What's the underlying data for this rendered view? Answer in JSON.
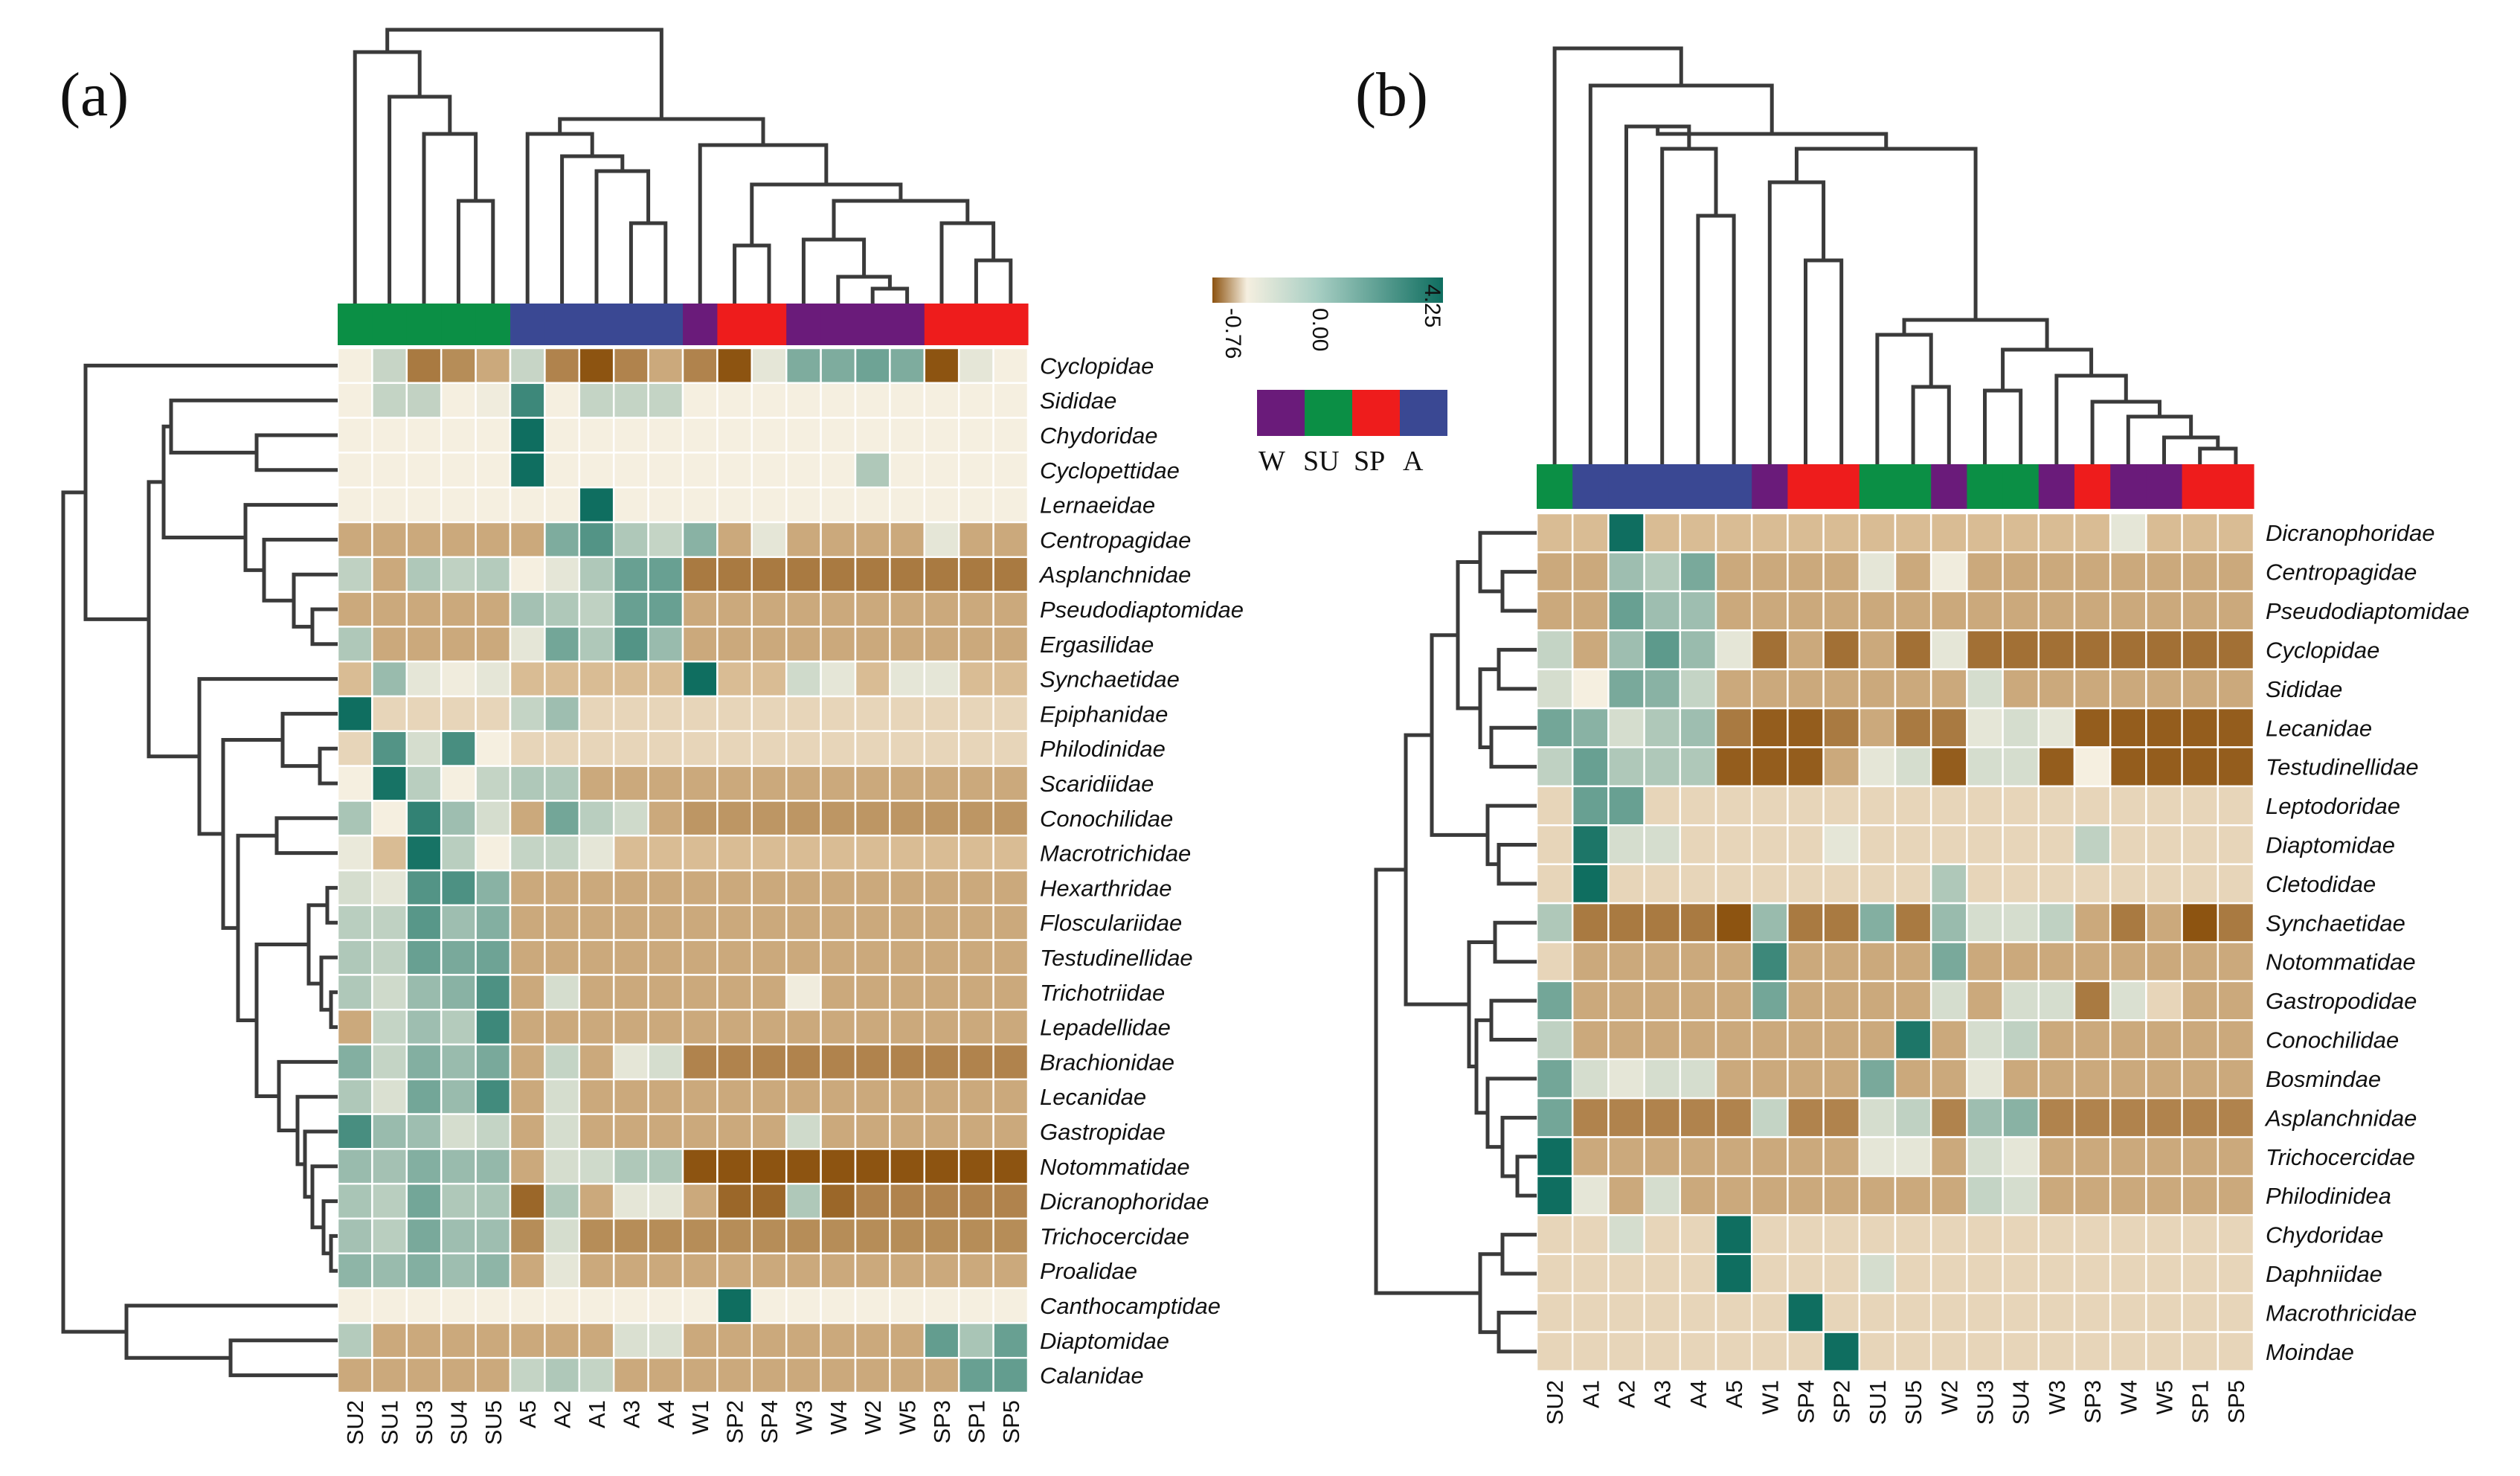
{
  "figure": {
    "panel_a_label": "(a)",
    "panel_b_label": "(b)"
  },
  "colors": {
    "W": "#6a1b7a",
    "SU": "#0b8f45",
    "SP": "#ee1c1c",
    "A": "#3a4893",
    "low": "#8c520f",
    "mid": "#f5efe0",
    "high": "#0f6e60"
  },
  "chart_data": [
    {
      "type": "heatmap",
      "title": "(a)",
      "columns": [
        "SU2",
        "SU1",
        "SU3",
        "SU4",
        "SU5",
        "A5",
        "A2",
        "A1",
        "A3",
        "A4",
        "W1",
        "SP2",
        "SP4",
        "W3",
        "W4",
        "W2",
        "W5",
        "SP3",
        "SP1",
        "SP5"
      ],
      "rows": [
        "Cyclopidae",
        "Sididae",
        "Chydoridae",
        "Cyclopettidae",
        "Lernaeidae",
        "Centropagidae",
        "Asplanchnidae",
        "Pseudodiaptomidae",
        "Ergasilidae",
        "Synchaetidae",
        "Epiphanidae",
        "Philodinidae",
        "Scaridiidae",
        "Conochilidae",
        "Macrotrichidae",
        "Hexarthridae",
        "Flosculariidae",
        "Testudinellidae",
        "Trichotriidae",
        "Lepadellidae",
        "Brachionidae",
        "Lecanidae",
        "Gastropidae",
        "Notommatidae",
        "Dicranophoridae",
        "Trichocercidae",
        "Proalidae",
        "Canthocamptidae",
        "Diaptomidae",
        "Calanidae"
      ],
      "values": [
        [
          0.0,
          0.85,
          -0.55,
          -0.45,
          -0.3,
          0.85,
          -0.5,
          -0.75,
          -0.5,
          -0.3,
          -0.5,
          -0.75,
          0.3,
          2.2,
          2.2,
          2.5,
          2.2,
          -0.75,
          0.3,
          0.0
        ],
        [
          0.0,
          0.9,
          0.95,
          0.0,
          0.1,
          3.4,
          0.0,
          0.9,
          0.9,
          0.9,
          0.0,
          0.0,
          0.0,
          0.0,
          0.0,
          0.0,
          0.0,
          0.0,
          0.0,
          0.0
        ],
        [
          0.0,
          0.0,
          0.0,
          0.0,
          0.0,
          4.25,
          0.0,
          0.0,
          0.0,
          0.0,
          0.0,
          0.0,
          0.0,
          0.0,
          0.0,
          0.0,
          0.0,
          0.0,
          0.0,
          0.0
        ],
        [
          0.0,
          0.0,
          0.0,
          0.0,
          0.0,
          4.25,
          0.0,
          0.0,
          0.0,
          0.0,
          0.0,
          0.0,
          0.0,
          0.0,
          0.0,
          1.3,
          0.0,
          0.0,
          0.0,
          0.0
        ],
        [
          0.0,
          0.0,
          0.0,
          0.0,
          0.0,
          0.0,
          0.0,
          4.25,
          0.0,
          0.0,
          0.0,
          0.0,
          0.0,
          0.0,
          0.0,
          0.0,
          0.0,
          0.0,
          0.0,
          0.0
        ],
        [
          -0.3,
          -0.3,
          -0.3,
          -0.3,
          -0.3,
          -0.3,
          2.2,
          3.0,
          1.3,
          0.9,
          2.0,
          -0.3,
          0.3,
          -0.3,
          -0.3,
          -0.3,
          -0.3,
          0.3,
          -0.3,
          -0.3
        ],
        [
          1.0,
          -0.3,
          1.3,
          1.0,
          1.2,
          0.0,
          0.3,
          1.3,
          2.6,
          2.6,
          -0.55,
          -0.55,
          -0.55,
          -0.55,
          -0.55,
          -0.55,
          -0.55,
          -0.55,
          -0.55,
          -0.55
        ],
        [
          -0.3,
          -0.3,
          -0.3,
          -0.3,
          -0.3,
          1.5,
          1.3,
          1.0,
          2.6,
          2.6,
          -0.3,
          -0.3,
          -0.3,
          -0.3,
          -0.3,
          -0.3,
          -0.3,
          -0.3,
          -0.3,
          -0.3
        ],
        [
          1.3,
          -0.3,
          -0.3,
          -0.3,
          -0.3,
          0.3,
          2.4,
          1.3,
          3.0,
          1.7,
          -0.3,
          -0.3,
          -0.3,
          -0.3,
          -0.3,
          -0.3,
          -0.3,
          -0.3,
          -0.3,
          -0.3
        ],
        [
          -0.2,
          1.7,
          0.3,
          0.1,
          0.3,
          -0.2,
          -0.2,
          -0.2,
          -0.2,
          -0.2,
          4.25,
          -0.2,
          -0.2,
          0.7,
          0.3,
          -0.2,
          0.3,
          0.3,
          -0.2,
          -0.2
        ],
        [
          4.25,
          -0.1,
          -0.1,
          -0.1,
          -0.1,
          0.9,
          1.6,
          -0.1,
          -0.1,
          -0.1,
          -0.1,
          -0.1,
          -0.1,
          -0.1,
          -0.1,
          -0.1,
          -0.1,
          -0.1,
          -0.1,
          -0.1
        ],
        [
          -0.1,
          3.0,
          0.6,
          3.2,
          0.0,
          -0.1,
          -0.1,
          -0.1,
          -0.1,
          -0.1,
          -0.1,
          -0.1,
          -0.1,
          -0.1,
          -0.1,
          -0.1,
          -0.1,
          -0.1,
          -0.1,
          -0.1
        ],
        [
          0.0,
          4.1,
          1.1,
          0.0,
          0.9,
          1.3,
          1.3,
          -0.3,
          -0.3,
          -0.3,
          -0.3,
          -0.3,
          -0.3,
          -0.3,
          -0.3,
          -0.3,
          -0.3,
          -0.3,
          -0.3,
          -0.3
        ],
        [
          1.4,
          0.0,
          3.6,
          1.6,
          0.6,
          -0.3,
          2.4,
          1.1,
          0.7,
          -0.3,
          -0.4,
          -0.4,
          -0.4,
          -0.4,
          -0.4,
          -0.4,
          -0.4,
          -0.4,
          -0.4,
          -0.4
        ],
        [
          0.2,
          -0.2,
          4.1,
          1.1,
          0.0,
          0.9,
          0.9,
          0.3,
          -0.2,
          -0.2,
          -0.2,
          -0.2,
          -0.2,
          -0.2,
          -0.2,
          -0.2,
          -0.2,
          -0.2,
          -0.2,
          -0.2
        ],
        [
          0.6,
          0.3,
          3.0,
          3.1,
          2.0,
          -0.3,
          -0.3,
          -0.3,
          -0.3,
          -0.3,
          -0.3,
          -0.3,
          -0.3,
          -0.3,
          -0.3,
          -0.3,
          -0.3,
          -0.3,
          -0.3,
          -0.3
        ],
        [
          1.1,
          1.0,
          2.9,
          1.6,
          2.1,
          -0.3,
          -0.3,
          -0.3,
          -0.3,
          -0.3,
          -0.3,
          -0.3,
          -0.3,
          -0.3,
          -0.3,
          -0.3,
          -0.3,
          -0.3,
          -0.3,
          -0.3
        ],
        [
          1.3,
          1.0,
          2.6,
          2.3,
          2.5,
          -0.3,
          -0.3,
          -0.3,
          -0.3,
          -0.3,
          -0.3,
          -0.3,
          -0.3,
          -0.3,
          -0.3,
          -0.3,
          -0.3,
          -0.3,
          -0.3,
          -0.3
        ],
        [
          1.3,
          0.7,
          1.7,
          2.0,
          3.1,
          -0.3,
          0.6,
          -0.3,
          -0.3,
          -0.3,
          -0.3,
          -0.3,
          -0.3,
          0.1,
          -0.3,
          -0.3,
          -0.3,
          -0.3,
          -0.3,
          -0.3
        ],
        [
          -0.3,
          0.9,
          1.6,
          1.2,
          3.4,
          -0.3,
          -0.3,
          -0.3,
          -0.3,
          -0.3,
          -0.3,
          -0.3,
          -0.3,
          -0.3,
          -0.3,
          -0.3,
          -0.3,
          -0.3,
          -0.3,
          -0.3
        ],
        [
          2.1,
          0.9,
          2.1,
          1.7,
          2.3,
          -0.3,
          0.9,
          -0.3,
          0.3,
          0.6,
          -0.5,
          -0.5,
          -0.5,
          -0.5,
          -0.5,
          -0.5,
          -0.5,
          -0.5,
          -0.5,
          -0.5
        ],
        [
          1.3,
          0.5,
          2.4,
          1.7,
          3.3,
          -0.3,
          0.6,
          -0.3,
          -0.3,
          -0.3,
          -0.3,
          -0.3,
          -0.3,
          -0.3,
          -0.3,
          -0.3,
          -0.3,
          -0.3,
          -0.3,
          -0.3
        ],
        [
          3.2,
          1.7,
          1.6,
          0.6,
          0.9,
          -0.3,
          0.6,
          -0.3,
          -0.3,
          -0.3,
          -0.3,
          -0.3,
          -0.3,
          0.7,
          -0.3,
          -0.3,
          -0.3,
          -0.3,
          -0.3,
          -0.3
        ],
        [
          1.7,
          1.5,
          2.1,
          1.7,
          1.8,
          -0.3,
          0.6,
          0.7,
          1.3,
          1.3,
          -0.75,
          -0.75,
          -0.75,
          -0.75,
          -0.75,
          -0.75,
          -0.75,
          -0.75,
          -0.75,
          -0.75
        ],
        [
          1.4,
          1.1,
          2.4,
          1.3,
          1.4,
          -0.65,
          1.3,
          -0.3,
          0.3,
          0.3,
          -0.3,
          -0.65,
          -0.65,
          1.3,
          -0.65,
          -0.5,
          -0.5,
          -0.5,
          -0.5,
          -0.5
        ],
        [
          1.5,
          1.1,
          2.3,
          1.6,
          1.6,
          -0.45,
          0.6,
          -0.45,
          -0.45,
          -0.45,
          -0.45,
          -0.45,
          -0.45,
          -0.45,
          -0.45,
          -0.45,
          -0.45,
          -0.45,
          -0.45,
          -0.45
        ],
        [
          1.9,
          1.7,
          2.1,
          1.6,
          1.9,
          -0.3,
          0.3,
          -0.3,
          -0.3,
          -0.3,
          -0.3,
          -0.3,
          -0.3,
          -0.3,
          -0.3,
          -0.3,
          -0.3,
          -0.3,
          -0.3,
          -0.3
        ],
        [
          0.0,
          0.0,
          0.0,
          0.0,
          0.0,
          0.0,
          0.0,
          0.0,
          0.0,
          0.0,
          0.0,
          4.25,
          0.0,
          0.0,
          0.0,
          0.0,
          0.0,
          0.0,
          0.0,
          0.0
        ],
        [
          1.2,
          -0.3,
          -0.3,
          -0.3,
          -0.3,
          -0.3,
          -0.3,
          -0.3,
          0.5,
          0.5,
          -0.3,
          -0.3,
          -0.3,
          -0.3,
          -0.3,
          -0.3,
          -0.3,
          2.7,
          1.4,
          2.6
        ],
        [
          -0.3,
          -0.3,
          -0.3,
          -0.3,
          -0.3,
          0.9,
          1.3,
          0.9,
          -0.3,
          -0.3,
          -0.3,
          -0.3,
          -0.3,
          -0.3,
          -0.3,
          -0.3,
          -0.3,
          -0.3,
          2.6,
          2.7
        ]
      ]
    },
    {
      "type": "heatmap",
      "title": "(b)",
      "columns": [
        "SU2",
        "A1",
        "A2",
        "A3",
        "A4",
        "A5",
        "W1",
        "SP4",
        "SP2",
        "SU1",
        "SU5",
        "W2",
        "SU3",
        "SU4",
        "W3",
        "SP3",
        "W4",
        "W5",
        "SP1",
        "SP5"
      ],
      "rows": [
        "Dicranophoridae",
        "Centropagidae",
        "Pseudodiaptomidae",
        "Cyclopidae",
        "Sididae",
        "Lecanidae",
        "Testudinellidae",
        "Leptodoridae",
        "Diaptomidae",
        "Cletodidae",
        "Synchaetidae",
        "Notommatidae",
        "Gastropodidae",
        "Conochilidae",
        "Bosmindae",
        "Asplanchnidae",
        "Trichocercidae",
        "Philodinidea",
        "Chydoridae",
        "Daphniidae",
        "Macrothricidae",
        "Moindae"
      ],
      "values": [
        [
          -0.2,
          -0.2,
          4.25,
          -0.2,
          -0.2,
          -0.2,
          -0.2,
          -0.2,
          -0.2,
          -0.2,
          -0.2,
          -0.2,
          -0.2,
          -0.2,
          -0.2,
          -0.2,
          0.3,
          -0.2,
          -0.2,
          -0.2
        ],
        [
          -0.3,
          -0.3,
          1.6,
          1.2,
          2.3,
          -0.3,
          -0.3,
          -0.3,
          -0.3,
          0.3,
          -0.3,
          0.1,
          -0.3,
          -0.3,
          -0.3,
          -0.3,
          -0.3,
          -0.3,
          -0.3,
          -0.3
        ],
        [
          -0.3,
          -0.3,
          2.6,
          1.6,
          1.6,
          -0.3,
          -0.3,
          -0.3,
          -0.3,
          -0.3,
          -0.3,
          -0.3,
          -0.3,
          -0.3,
          -0.3,
          -0.3,
          -0.3,
          -0.3,
          -0.3,
          -0.3
        ],
        [
          0.9,
          -0.3,
          1.6,
          2.8,
          1.7,
          0.3,
          -0.6,
          -0.3,
          -0.6,
          -0.3,
          -0.6,
          0.3,
          -0.6,
          -0.6,
          -0.6,
          -0.6,
          -0.6,
          -0.6,
          -0.6,
          -0.6
        ],
        [
          0.6,
          0.0,
          2.3,
          2.0,
          0.9,
          -0.3,
          -0.3,
          -0.3,
          -0.3,
          -0.3,
          -0.3,
          -0.3,
          0.6,
          -0.3,
          -0.3,
          -0.3,
          -0.3,
          -0.3,
          -0.3,
          -0.3
        ],
        [
          2.4,
          2.0,
          0.6,
          1.3,
          1.6,
          -0.55,
          -0.7,
          -0.7,
          -0.55,
          -0.3,
          -0.55,
          -0.55,
          0.3,
          0.6,
          0.3,
          -0.7,
          -0.7,
          -0.7,
          -0.7,
          -0.7
        ],
        [
          1.0,
          2.6,
          1.3,
          1.3,
          1.3,
          -0.7,
          -0.7,
          -0.7,
          -0.3,
          0.3,
          0.6,
          -0.7,
          0.6,
          0.6,
          -0.7,
          0.0,
          -0.7,
          -0.7,
          -0.7,
          -0.7
        ],
        [
          -0.1,
          2.6,
          2.6,
          -0.1,
          -0.1,
          -0.1,
          -0.1,
          -0.1,
          -0.1,
          -0.1,
          -0.1,
          -0.1,
          -0.1,
          -0.1,
          -0.1,
          -0.1,
          -0.1,
          -0.1,
          -0.1,
          -0.1
        ],
        [
          -0.1,
          4.0,
          0.6,
          0.6,
          -0.1,
          -0.1,
          -0.1,
          -0.1,
          0.3,
          -0.1,
          -0.1,
          -0.1,
          -0.1,
          -0.1,
          -0.1,
          1.0,
          -0.1,
          -0.1,
          -0.1,
          -0.1
        ],
        [
          -0.1,
          4.25,
          -0.1,
          -0.1,
          -0.1,
          -0.1,
          -0.1,
          -0.1,
          -0.1,
          -0.1,
          -0.1,
          1.3,
          -0.1,
          -0.1,
          -0.1,
          -0.1,
          -0.1,
          -0.1,
          -0.1,
          -0.1
        ],
        [
          1.3,
          -0.55,
          -0.55,
          -0.55,
          -0.55,
          -0.75,
          1.7,
          -0.55,
          -0.55,
          2.1,
          -0.55,
          1.7,
          0.6,
          0.6,
          1.0,
          -0.3,
          -0.55,
          -0.3,
          -0.75,
          -0.55
        ],
        [
          -0.1,
          -0.3,
          -0.3,
          -0.3,
          -0.3,
          -0.3,
          3.4,
          -0.3,
          -0.3,
          -0.3,
          -0.3,
          2.3,
          -0.3,
          -0.3,
          -0.3,
          -0.3,
          -0.3,
          -0.3,
          -0.3,
          -0.3
        ],
        [
          2.4,
          -0.3,
          -0.3,
          -0.3,
          -0.3,
          -0.3,
          2.4,
          -0.3,
          -0.3,
          -0.3,
          -0.3,
          0.6,
          -0.3,
          0.6,
          0.6,
          -0.55,
          0.5,
          -0.1,
          -0.3,
          -0.3
        ],
        [
          1.0,
          -0.3,
          -0.3,
          -0.3,
          -0.3,
          -0.3,
          -0.3,
          -0.3,
          -0.3,
          -0.3,
          4.0,
          -0.3,
          0.6,
          1.0,
          -0.3,
          -0.3,
          -0.3,
          -0.3,
          -0.3,
          -0.3
        ],
        [
          2.4,
          0.6,
          0.3,
          0.6,
          0.6,
          -0.3,
          -0.3,
          -0.3,
          -0.3,
          2.3,
          -0.3,
          -0.3,
          0.3,
          -0.3,
          -0.3,
          -0.3,
          -0.3,
          -0.3,
          -0.3,
          -0.3
        ],
        [
          2.4,
          -0.5,
          -0.5,
          -0.5,
          -0.5,
          -0.5,
          0.9,
          -0.5,
          -0.5,
          0.6,
          1.0,
          -0.5,
          1.6,
          2.0,
          -0.5,
          -0.5,
          -0.5,
          -0.5,
          -0.5,
          -0.5
        ],
        [
          4.25,
          -0.3,
          -0.3,
          -0.3,
          -0.3,
          -0.3,
          -0.3,
          -0.3,
          -0.3,
          0.3,
          0.3,
          -0.3,
          0.6,
          0.3,
          -0.3,
          -0.3,
          -0.3,
          -0.3,
          -0.3,
          -0.3
        ],
        [
          4.25,
          0.3,
          -0.3,
          0.6,
          -0.3,
          -0.3,
          -0.3,
          -0.3,
          -0.3,
          -0.3,
          -0.3,
          -0.3,
          0.9,
          0.6,
          -0.3,
          -0.3,
          -0.3,
          -0.3,
          -0.3,
          -0.3
        ],
        [
          -0.1,
          -0.1,
          0.6,
          -0.1,
          -0.1,
          4.25,
          -0.1,
          -0.1,
          -0.1,
          -0.1,
          -0.1,
          -0.1,
          -0.1,
          -0.1,
          -0.1,
          -0.1,
          -0.1,
          -0.1,
          -0.1,
          -0.1
        ],
        [
          -0.1,
          -0.1,
          -0.1,
          -0.1,
          -0.1,
          4.25,
          -0.1,
          -0.1,
          -0.1,
          0.6,
          -0.1,
          -0.1,
          -0.1,
          -0.1,
          -0.1,
          -0.1,
          -0.1,
          -0.1,
          -0.1,
          -0.1
        ],
        [
          -0.1,
          -0.1,
          -0.1,
          -0.1,
          -0.1,
          -0.1,
          -0.1,
          4.25,
          -0.1,
          -0.1,
          -0.1,
          -0.1,
          -0.1,
          -0.1,
          -0.1,
          -0.1,
          -0.1,
          -0.1,
          -0.1,
          -0.1
        ],
        [
          -0.1,
          -0.1,
          -0.1,
          -0.1,
          -0.1,
          -0.1,
          -0.1,
          -0.1,
          4.25,
          -0.1,
          -0.1,
          -0.1,
          -0.1,
          -0.1,
          -0.1,
          -0.1,
          -0.1,
          -0.1,
          -0.1,
          -0.1
        ]
      ]
    }
  ],
  "colorbar": {
    "min_label": "-0.76",
    "mid_label": "0.00",
    "max_label": "4.25",
    "min": -0.76,
    "max": 4.25
  },
  "legend": {
    "groups": [
      "W",
      "SU",
      "SP",
      "A"
    ]
  }
}
